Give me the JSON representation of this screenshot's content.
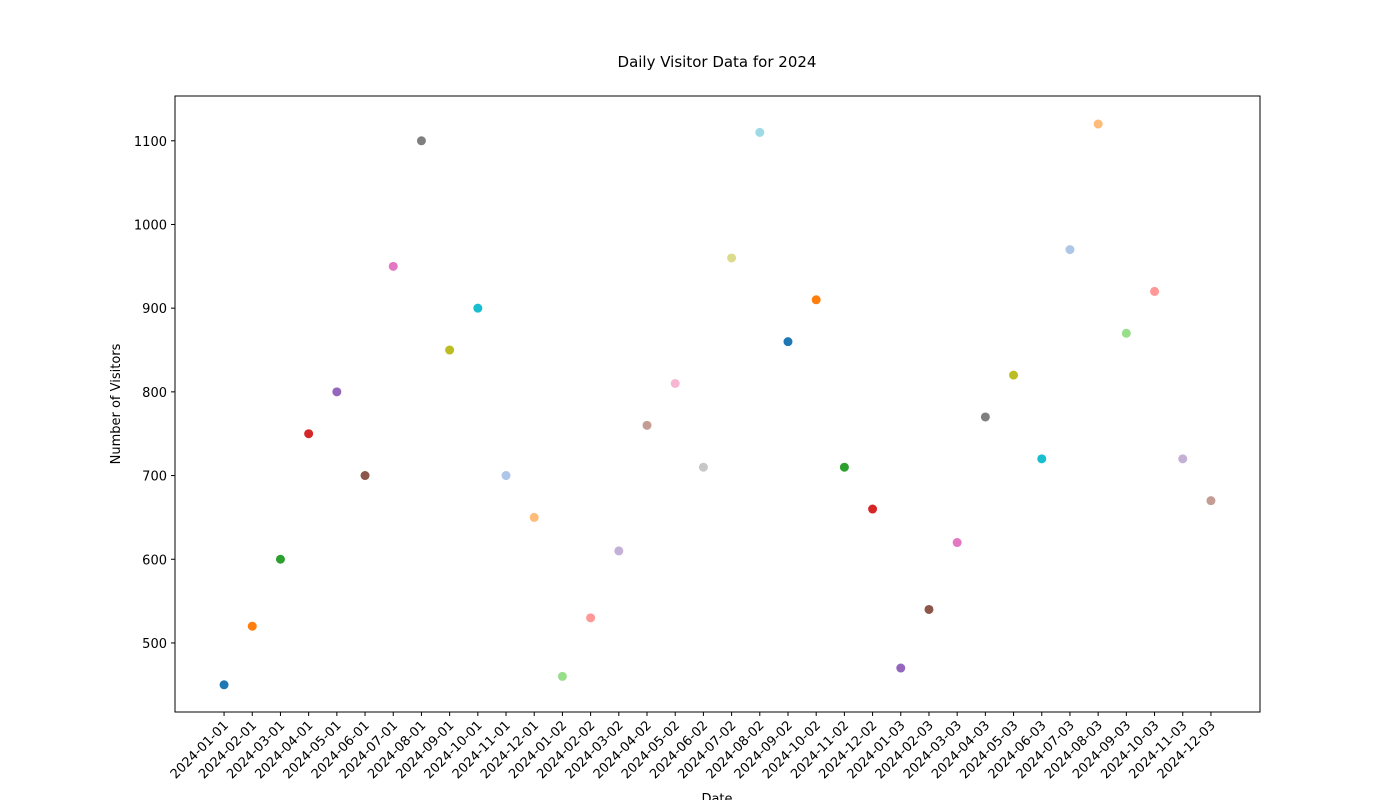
{
  "chart_data": {
    "type": "scatter",
    "title": "Daily Visitor Data for 2024",
    "x_label": "Date",
    "y_label": "Number of Visitors",
    "categories": [
      "2024-01-01",
      "2024-02-01",
      "2024-03-01",
      "2024-04-01",
      "2024-05-01",
      "2024-06-01",
      "2024-07-01",
      "2024-08-01",
      "2024-09-01",
      "2024-10-01",
      "2024-11-01",
      "2024-12-01",
      "2024-01-02",
      "2024-02-02",
      "2024-03-02",
      "2024-04-02",
      "2024-05-02",
      "2024-06-02",
      "2024-07-02",
      "2024-08-02",
      "2024-09-02",
      "2024-10-02",
      "2024-11-02",
      "2024-12-02",
      "2024-01-03",
      "2024-02-03",
      "2024-03-03",
      "2024-04-03",
      "2024-05-03",
      "2024-06-03",
      "2024-07-03",
      "2024-08-03",
      "2024-09-03",
      "2024-10-03",
      "2024-11-03",
      "2024-12-03"
    ],
    "values": [
      450,
      520,
      600,
      750,
      800,
      700,
      950,
      1100,
      850,
      900,
      700,
      650,
      460,
      530,
      610,
      760,
      810,
      710,
      960,
      1110,
      860,
      910,
      710,
      660,
      470,
      540,
      620,
      770,
      820,
      720,
      970,
      1120,
      870,
      920,
      720,
      670
    ],
    "colors": [
      "#1f77b4",
      "#ff7f0e",
      "#2ca02c",
      "#d62728",
      "#9467bd",
      "#8c564b",
      "#e377c2",
      "#7f7f7f",
      "#bcbd22",
      "#17becf",
      "#aec7e8",
      "#ffbb78",
      "#98df8a",
      "#ff9896",
      "#c5b0d5",
      "#c49c94",
      "#f7b6d2",
      "#c7c7c7",
      "#dbdb8d",
      "#9edae5",
      "#1f77b4",
      "#ff7f0e",
      "#2ca02c",
      "#d62728",
      "#9467bd",
      "#8c564b",
      "#e377c2",
      "#7f7f7f",
      "#bcbd22",
      "#17becf",
      "#aec7e8",
      "#ffbb78",
      "#98df8a",
      "#ff9896",
      "#c5b0d5",
      "#c49c94"
    ],
    "ylim": [
      417.5,
      1153.5
    ],
    "yticks": [
      500,
      600,
      700,
      800,
      900,
      1000,
      1100
    ]
  }
}
